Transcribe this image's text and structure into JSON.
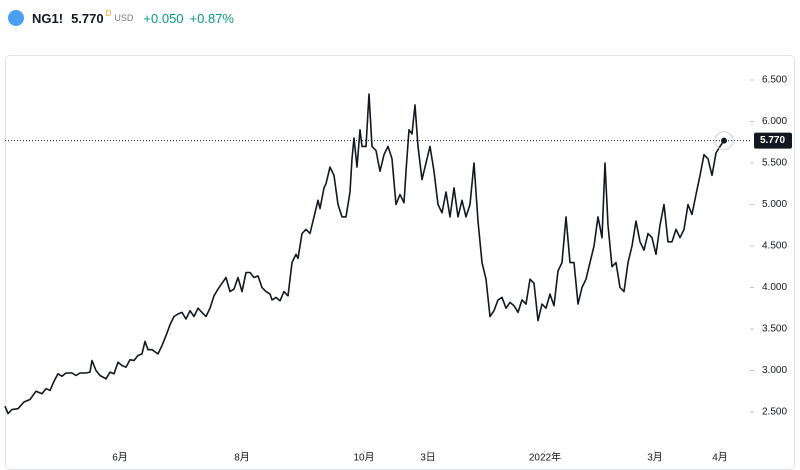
{
  "header": {
    "symbol": "NG1!",
    "price": "5.770",
    "flag": "D",
    "currency": "USD",
    "change": "+0.050",
    "change_pct": "+0.87%"
  },
  "chart_data": {
    "type": "line",
    "color": "#131722",
    "x": [
      0,
      3,
      7,
      13,
      19,
      25,
      31,
      37,
      41,
      45,
      49,
      53,
      57,
      61,
      67,
      71,
      75,
      81,
      85,
      87,
      91,
      95,
      101,
      105,
      109,
      113,
      117,
      121,
      125,
      129,
      133,
      137,
      140,
      143,
      147,
      153,
      157,
      161,
      165,
      169,
      173,
      177,
      181,
      185,
      189,
      193,
      197,
      201,
      205,
      209,
      213,
      217,
      221,
      225,
      229,
      233,
      237,
      241,
      245,
      249,
      253,
      257,
      261,
      265,
      267,
      271,
      275,
      279,
      283,
      287,
      291,
      293,
      297,
      301,
      305,
      309,
      313,
      315,
      319,
      321,
      325,
      329,
      333,
      337,
      341,
      345,
      347,
      349,
      352,
      355,
      357,
      361,
      364,
      367,
      371,
      375,
      379,
      383,
      387,
      391,
      395,
      399,
      401,
      404,
      407,
      410,
      413,
      417,
      421,
      425,
      429,
      433,
      437,
      441,
      445,
      449,
      453,
      457,
      461,
      465,
      469,
      473,
      477,
      481,
      485,
      489,
      493,
      497,
      501,
      505,
      509,
      513,
      517,
      521,
      525,
      529,
      533,
      537,
      541,
      545,
      549,
      553,
      557,
      561,
      565,
      569,
      573,
      577,
      581,
      585,
      589,
      593,
      597,
      600,
      603,
      607,
      611,
      615,
      619,
      623,
      627,
      631,
      635,
      639,
      643,
      647,
      651,
      655,
      659,
      663,
      667,
      671,
      675,
      679,
      683,
      687,
      691,
      695,
      699,
      703,
      707,
      711,
      715,
      719
    ],
    "values": [
      2.57,
      2.48,
      2.53,
      2.54,
      2.62,
      2.65,
      2.75,
      2.72,
      2.78,
      2.76,
      2.87,
      2.96,
      2.93,
      2.97,
      2.97,
      2.94,
      2.97,
      2.97,
      2.98,
      3.12,
      3.0,
      2.94,
      2.9,
      2.98,
      2.96,
      3.1,
      3.06,
      3.04,
      3.13,
      3.12,
      3.18,
      3.2,
      3.35,
      3.25,
      3.25,
      3.2,
      3.3,
      3.42,
      3.55,
      3.65,
      3.68,
      3.7,
      3.62,
      3.72,
      3.65,
      3.75,
      3.7,
      3.65,
      3.75,
      3.9,
      3.98,
      4.05,
      4.12,
      3.95,
      3.98,
      4.12,
      3.95,
      4.18,
      4.18,
      4.12,
      4.14,
      4.0,
      3.95,
      3.92,
      3.85,
      3.88,
      3.84,
      3.95,
      3.9,
      4.3,
      4.4,
      4.35,
      4.65,
      4.7,
      4.65,
      4.85,
      5.05,
      4.95,
      5.2,
      5.25,
      5.45,
      5.35,
      5.0,
      4.85,
      4.85,
      5.15,
      5.55,
      5.8,
      5.45,
      5.9,
      5.7,
      5.7,
      6.33,
      5.7,
      5.65,
      5.4,
      5.6,
      5.7,
      5.55,
      5.0,
      5.12,
      5.02,
      5.4,
      5.9,
      5.85,
      6.2,
      5.7,
      5.3,
      5.5,
      5.7,
      5.4,
      5.0,
      4.9,
      5.15,
      4.85,
      5.2,
      4.85,
      5.05,
      4.85,
      5.0,
      5.5,
      4.8,
      4.3,
      4.1,
      3.65,
      3.72,
      3.85,
      3.88,
      3.75,
      3.82,
      3.78,
      3.7,
      3.85,
      3.8,
      4.1,
      4.05,
      3.6,
      3.8,
      3.75,
      3.92,
      3.78,
      4.2,
      4.3,
      4.85,
      4.3,
      4.3,
      3.8,
      4.0,
      4.1,
      4.3,
      4.5,
      4.85,
      4.6,
      5.5,
      4.75,
      4.25,
      4.3,
      4.0,
      3.95,
      4.3,
      4.5,
      4.8,
      4.55,
      4.45,
      4.65,
      4.6,
      4.4,
      4.75,
      5.0,
      4.55,
      4.55,
      4.7,
      4.6,
      4.7,
      5.0,
      4.88,
      5.12,
      5.35,
      5.6,
      5.55,
      5.35,
      5.62,
      5.7,
      5.77
    ],
    "xlim": [
      0,
      745
    ],
    "xticks": [
      {
        "value": 115,
        "label": "6月"
      },
      {
        "value": 237,
        "label": "8月"
      },
      {
        "value": 359,
        "label": "10月"
      },
      {
        "value": 423,
        "label": "3日"
      },
      {
        "value": 540,
        "label": "2022年"
      },
      {
        "value": 650,
        "label": "3月"
      },
      {
        "value": 715,
        "label": "4月"
      }
    ],
    "ylim": [
      2.066,
      6.777
    ],
    "yticks": [
      {
        "value": 2.5,
        "label": "2.500"
      },
      {
        "value": 3,
        "label": "3.000"
      },
      {
        "value": 3.5,
        "label": "3.500"
      },
      {
        "value": 4,
        "label": "4.000"
      },
      {
        "value": 4.5,
        "label": "4.500"
      },
      {
        "value": 5,
        "label": "5.000"
      },
      {
        "value": 5.5,
        "label": "5.500"
      },
      {
        "value": 6,
        "label": "6.000"
      },
      {
        "value": 6.5,
        "label": "6.500"
      }
    ],
    "price_line": {
      "value": 5.77,
      "label": "5.770"
    }
  }
}
